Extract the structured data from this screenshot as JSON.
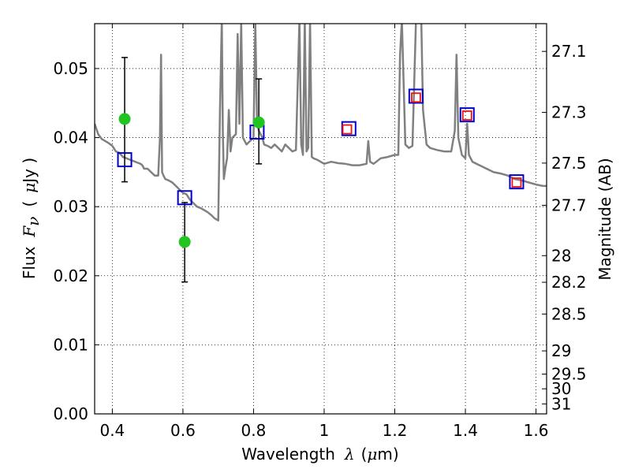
{
  "chart_data": {
    "type": "scatter",
    "xlabel_text": "Wavelength",
    "xlabel_symbol": "λ",
    "xlabel_unit_open": "(",
    "xlabel_unit_symbol": "μ",
    "xlabel_unit_close": "m)",
    "ylabel_text": "Flux",
    "ylabel_symbol": "F",
    "ylabel_sub": "ν",
    "ylabel_unit_open": "(",
    "ylabel_unit_symbol": "μ",
    "ylabel_unit_close": "Jy )",
    "y2label": "Magnitude (AB)",
    "xlim": [
      0.35,
      1.63
    ],
    "ylim": [
      0.0,
      0.0565
    ],
    "grid": true,
    "xticks": [
      {
        "value": 0.4,
        "label": "0.4"
      },
      {
        "value": 0.6,
        "label": "0.6"
      },
      {
        "value": 0.8,
        "label": "0.8"
      },
      {
        "value": 1.0,
        "label": "1"
      },
      {
        "value": 1.2,
        "label": "1.2"
      },
      {
        "value": 1.4,
        "label": "1.4"
      },
      {
        "value": 1.6,
        "label": "1.6"
      }
    ],
    "yticks": [
      {
        "value": 0.0,
        "label": "0.00"
      },
      {
        "value": 0.01,
        "label": "0.01"
      },
      {
        "value": 0.02,
        "label": "0.02"
      },
      {
        "value": 0.03,
        "label": "0.03"
      },
      {
        "value": 0.04,
        "label": "0.04"
      },
      {
        "value": 0.05,
        "label": "0.05"
      }
    ],
    "y2ticks": [
      {
        "mag": 27.1,
        "label": "27.1"
      },
      {
        "mag": 27.3,
        "label": "27.3"
      },
      {
        "mag": 27.5,
        "label": "27.5"
      },
      {
        "mag": 27.7,
        "label": "27.7"
      },
      {
        "mag": 28.0,
        "label": "28"
      },
      {
        "mag": 28.2,
        "label": "28.2"
      },
      {
        "mag": 28.5,
        "label": "28.5"
      },
      {
        "mag": 29.0,
        "label": "29"
      },
      {
        "mag": 29.5,
        "label": "29.5"
      },
      {
        "mag": 30.0,
        "label": "30"
      },
      {
        "mag": 31.0,
        "label": "31"
      }
    ],
    "spectrum": {
      "color": "#808080",
      "x": [
        0.35,
        0.36,
        0.37,
        0.38,
        0.39,
        0.4,
        0.41,
        0.42,
        0.43,
        0.44,
        0.45,
        0.46,
        0.47,
        0.48,
        0.485,
        0.49,
        0.5,
        0.51,
        0.52,
        0.53,
        0.535,
        0.538,
        0.541,
        0.545,
        0.55,
        0.56,
        0.57,
        0.58,
        0.59,
        0.6,
        0.61,
        0.62,
        0.63,
        0.64,
        0.65,
        0.66,
        0.67,
        0.68,
        0.69,
        0.7,
        0.705,
        0.71,
        0.713,
        0.716,
        0.72,
        0.725,
        0.73,
        0.735,
        0.74,
        0.75,
        0.755,
        0.76,
        0.765,
        0.77,
        0.78,
        0.79,
        0.8,
        0.805,
        0.81,
        0.815,
        0.82,
        0.825,
        0.83,
        0.84,
        0.85,
        0.86,
        0.87,
        0.88,
        0.89,
        0.9,
        0.91,
        0.92,
        0.93,
        0.935,
        0.94,
        0.945,
        0.95,
        0.955,
        0.96,
        0.965,
        0.97,
        0.98,
        0.99,
        1.0,
        1.02,
        1.04,
        1.06,
        1.08,
        1.1,
        1.12,
        1.125,
        1.13,
        1.14,
        1.16,
        1.18,
        1.2,
        1.21,
        1.215,
        1.22,
        1.23,
        1.24,
        1.25,
        1.26,
        1.27,
        1.275,
        1.28,
        1.29,
        1.3,
        1.32,
        1.34,
        1.36,
        1.37,
        1.375,
        1.38,
        1.39,
        1.4,
        1.405,
        1.41,
        1.42,
        1.44,
        1.46,
        1.48,
        1.5,
        1.52,
        1.54,
        1.56,
        1.58,
        1.6,
        1.62,
        1.63
      ],
      "y": [
        0.042,
        0.0405,
        0.0398,
        0.0395,
        0.0392,
        0.0388,
        0.038,
        0.0378,
        0.0372,
        0.037,
        0.0368,
        0.0366,
        0.0364,
        0.0362,
        0.036,
        0.0355,
        0.0355,
        0.035,
        0.0345,
        0.0345,
        0.04,
        0.052,
        0.035,
        0.0345,
        0.034,
        0.0338,
        0.0335,
        0.033,
        0.0325,
        0.032,
        0.0318,
        0.031,
        0.0305,
        0.03,
        0.0298,
        0.0295,
        0.0292,
        0.0288,
        0.0283,
        0.028,
        0.044,
        0.057,
        0.041,
        0.034,
        0.0355,
        0.037,
        0.044,
        0.038,
        0.04,
        0.0405,
        0.055,
        0.042,
        0.0565,
        0.04,
        0.039,
        0.0395,
        0.04,
        0.0565,
        0.042,
        0.041,
        0.0405,
        0.04,
        0.039,
        0.0388,
        0.0385,
        0.039,
        0.0385,
        0.038,
        0.039,
        0.0385,
        0.038,
        0.0382,
        0.057,
        0.039,
        0.0375,
        0.057,
        0.038,
        0.0385,
        0.057,
        0.0372,
        0.037,
        0.0368,
        0.0365,
        0.0362,
        0.0365,
        0.0363,
        0.0362,
        0.036,
        0.036,
        0.0362,
        0.0395,
        0.0365,
        0.0362,
        0.037,
        0.0372,
        0.0375,
        0.0375,
        0.052,
        0.057,
        0.039,
        0.0385,
        0.0388,
        0.057,
        0.057,
        0.057,
        0.044,
        0.039,
        0.0385,
        0.0382,
        0.038,
        0.038,
        0.041,
        0.052,
        0.04,
        0.0375,
        0.037,
        0.042,
        0.0375,
        0.0365,
        0.036,
        0.0355,
        0.035,
        0.0348,
        0.0345,
        0.034,
        0.0338,
        0.0335,
        0.0332,
        0.033,
        0.033
      ]
    },
    "points": {
      "green": {
        "color": "#22c422",
        "x": [
          0.435,
          0.605,
          0.815
        ],
        "y": [
          0.0427,
          0.0249,
          0.0422
        ],
        "yerr_low": [
          0.0336,
          0.0191,
          0.0362
        ],
        "yerr_high": [
          0.0516,
          0.0306,
          0.0485
        ]
      },
      "blue_squares": {
        "color": "#0000cc",
        "x": [
          0.435,
          0.605,
          0.81,
          1.07,
          1.26,
          1.405,
          1.545
        ],
        "y": [
          0.0368,
          0.0313,
          0.0408,
          0.0413,
          0.046,
          0.0433,
          0.0336
        ]
      },
      "red_squares": {
        "color": "#ee1111",
        "x": [
          1.065,
          1.26,
          1.405,
          1.545
        ],
        "y": [
          0.0412,
          0.0458,
          0.0432,
          0.0335
        ]
      }
    }
  }
}
